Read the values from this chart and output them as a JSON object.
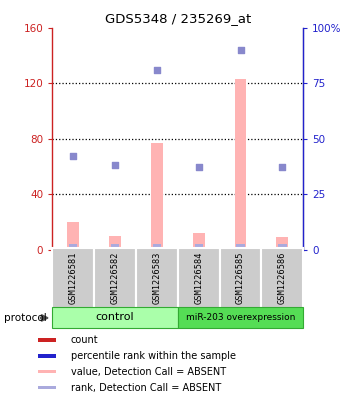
{
  "title": "GDS5348 / 235269_at",
  "samples": [
    "GSM1226581",
    "GSM1226582",
    "GSM1226583",
    "GSM1226584",
    "GSM1226585",
    "GSM1226586"
  ],
  "bar_values": [
    20,
    10,
    77,
    12,
    123,
    9
  ],
  "dot_values": [
    42,
    38,
    81,
    37,
    90,
    37
  ],
  "bar_color": "#ffb3b3",
  "dot_color": "#8888cc",
  "bar_bottom_color": "#cc2222",
  "dot_bottom_color": "#2222cc",
  "ylim_left": [
    0,
    160
  ],
  "ylim_right": [
    0,
    100
  ],
  "yticks_left": [
    0,
    40,
    80,
    120,
    160
  ],
  "yticks_right": [
    0,
    25,
    50,
    75,
    100
  ],
  "ytick_labels_left": [
    "0",
    "40",
    "80",
    "120",
    "160"
  ],
  "ytick_labels_right": [
    "0",
    "25",
    "50",
    "75",
    "100%"
  ],
  "left_axis_color": "#cc2222",
  "right_axis_color": "#2222cc",
  "control_color": "#aaffaa",
  "mir_color": "#55dd55",
  "sample_box_color": "#cccccc",
  "background_color": "#ffffff",
  "legend_items": [
    {
      "label": "count",
      "color": "#cc2222"
    },
    {
      "label": "percentile rank within the sample",
      "color": "#2222cc"
    },
    {
      "label": "value, Detection Call = ABSENT",
      "color": "#ffb3b3"
    },
    {
      "label": "rank, Detection Call = ABSENT",
      "color": "#aaaadd"
    }
  ]
}
